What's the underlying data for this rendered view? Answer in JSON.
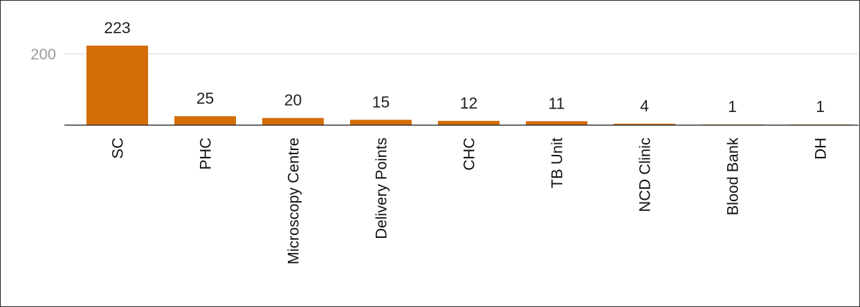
{
  "chart_data": {
    "type": "bar",
    "categories": [
      "SC",
      "PHC",
      "Microscopy Centre",
      "Delivery Points",
      "CHC",
      "TB Unit",
      "NCD Clinic",
      "Blood Bank",
      "DH"
    ],
    "values": [
      223,
      25,
      20,
      15,
      12,
      11,
      4,
      1,
      1
    ],
    "data_labels": [
      "223",
      "25",
      "20",
      "15",
      "12",
      "11",
      "4",
      "1",
      "1"
    ],
    "y_ticks": [
      200
    ],
    "y_tick_labels": [
      "200"
    ],
    "ylim": [
      0,
      223
    ],
    "grid": true,
    "bar_color": "#d46c05",
    "gridline_color": "#e2e2e2",
    "axis_color": "#333333",
    "x_label_orientation": "rotated-vertical"
  }
}
